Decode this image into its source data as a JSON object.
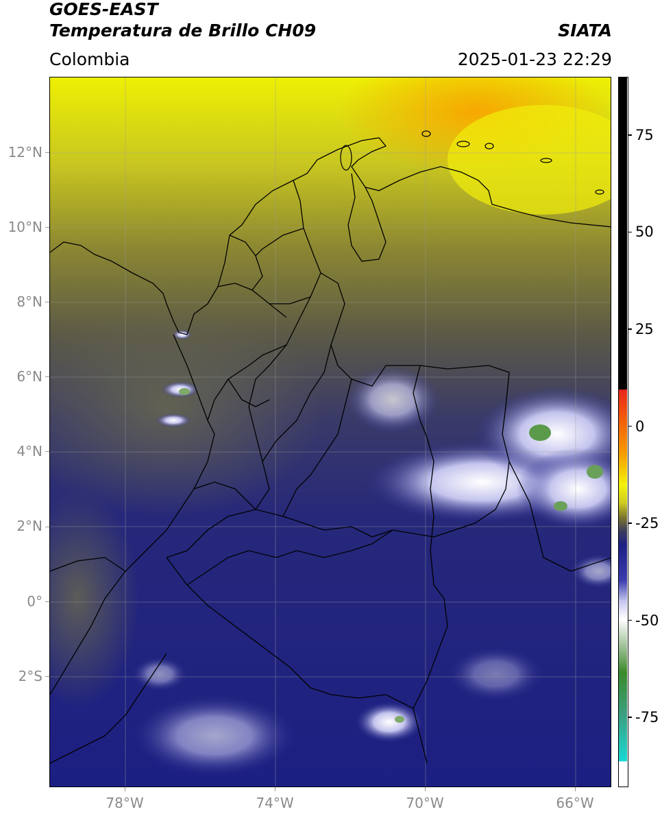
{
  "header": {
    "line1": "GOES-EAST",
    "line2": "Temperatura de Brillo CH09",
    "region": "Colombia",
    "brand": "SIATA",
    "timestamp": "2025-01-23 22:29"
  },
  "map": {
    "lat_labels": [
      "12°N",
      "10°N",
      "8°N",
      "6°N",
      "4°N",
      "2°N",
      "0°",
      "2°S"
    ],
    "lon_labels": [
      "78°W",
      "74°W",
      "70°W",
      "66°W"
    ]
  },
  "colorbar": {
    "tick_labels": [
      "75",
      "50",
      "25",
      "0",
      "-25",
      "-50",
      "-75"
    ],
    "tick_values": [
      75,
      50,
      25,
      0,
      -25,
      -50,
      -75
    ],
    "range": [
      -93,
      90
    ],
    "colors": {
      "warm_black": "#000000",
      "red": "#e8261c",
      "orange": "#f59a00",
      "yellow": "#f3f20a",
      "olive": "#7f7a2c",
      "navy": "#1d1f84",
      "light_blue": "#c8c8ef",
      "white": "#ffffff",
      "green": "#3a8a2a",
      "teal": "#19c9c4"
    }
  }
}
